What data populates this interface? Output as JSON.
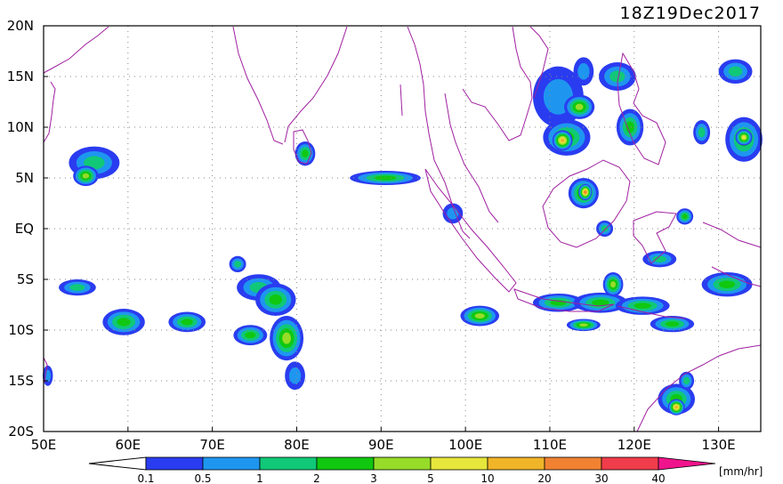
{
  "title": "18Z19Dec2017",
  "units_label": "[mm/hr]",
  "map": {
    "lon_range": [
      50,
      135
    ],
    "lat_range": [
      -20,
      20
    ],
    "lon_ticks": [
      {
        "value": 50,
        "label": "50E"
      },
      {
        "value": 60,
        "label": "60E"
      },
      {
        "value": 70,
        "label": "70E"
      },
      {
        "value": 80,
        "label": "80E"
      },
      {
        "value": 90,
        "label": "90E"
      },
      {
        "value": 100,
        "label": "100E"
      },
      {
        "value": 110,
        "label": "110E"
      },
      {
        "value": 120,
        "label": "120E"
      },
      {
        "value": 130,
        "label": "130E"
      }
    ],
    "lat_ticks": [
      {
        "value": 20,
        "label": "20N"
      },
      {
        "value": 15,
        "label": "15N"
      },
      {
        "value": 10,
        "label": "10N"
      },
      {
        "value": 5,
        "label": "5N"
      },
      {
        "value": 0,
        "label": "EQ"
      },
      {
        "value": -5,
        "label": "5S"
      },
      {
        "value": -10,
        "label": "10S"
      },
      {
        "value": -15,
        "label": "15S"
      },
      {
        "value": -20,
        "label": "20S"
      }
    ],
    "grid": "dotted",
    "coastline_color": "#a020a0"
  },
  "colorbar": {
    "levels": [
      "0.1",
      "0.5",
      "1",
      "2",
      "3",
      "5",
      "10",
      "20",
      "30",
      "40"
    ],
    "colors": [
      "#2a3cf0",
      "#1e96f0",
      "#10c878",
      "#10c810",
      "#96dc28",
      "#e6e63c",
      "#f0b428",
      "#f08232",
      "#f03c4b",
      "#f0148c"
    ],
    "under_color": "#ffffff"
  },
  "rain_cells": [
    {
      "lon": 56,
      "lat": 6.5,
      "rx": 3,
      "ry": 1.6,
      "level": 2
    },
    {
      "lon": 55,
      "lat": 5.2,
      "rx": 1.5,
      "ry": 1,
      "level": 4
    },
    {
      "lon": 59.5,
      "lat": -9.2,
      "rx": 2.5,
      "ry": 1.3,
      "level": 3
    },
    {
      "lon": 67,
      "lat": -9.2,
      "rx": 2.2,
      "ry": 1,
      "level": 3
    },
    {
      "lon": 54,
      "lat": -5.8,
      "rx": 2.2,
      "ry": 0.8,
      "level": 2
    },
    {
      "lon": 75.5,
      "lat": -5.8,
      "rx": 2.6,
      "ry": 1.3,
      "level": 2
    },
    {
      "lon": 77.5,
      "lat": -7,
      "rx": 2.4,
      "ry": 1.6,
      "level": 3
    },
    {
      "lon": 78.8,
      "lat": -10.8,
      "rx": 2,
      "ry": 2.2,
      "level": 4
    },
    {
      "lon": 74.5,
      "lat": -10.5,
      "rx": 2,
      "ry": 1,
      "level": 3
    },
    {
      "lon": 73,
      "lat": -3.5,
      "rx": 1,
      "ry": 0.8,
      "level": 2
    },
    {
      "lon": 79.8,
      "lat": -14.5,
      "rx": 1.2,
      "ry": 1.4,
      "level": 1
    },
    {
      "lon": 50.5,
      "lat": -14.5,
      "rx": 0.6,
      "ry": 1,
      "level": 1
    },
    {
      "lon": 81,
      "lat": 7.4,
      "rx": 1.2,
      "ry": 1.2,
      "level": 3
    },
    {
      "lon": 90.5,
      "lat": 5,
      "rx": 4.2,
      "ry": 0.7,
      "level": 3
    },
    {
      "lon": 98.5,
      "lat": 1.5,
      "rx": 1.2,
      "ry": 1,
      "level": 1
    },
    {
      "lon": 101.7,
      "lat": -8.6,
      "rx": 2.3,
      "ry": 1,
      "level": 4
    },
    {
      "lon": 111,
      "lat": 13,
      "rx": 3,
      "ry": 3,
      "level": 1
    },
    {
      "lon": 112,
      "lat": 9,
      "rx": 2.8,
      "ry": 1.8,
      "level": 3
    },
    {
      "lon": 113.5,
      "lat": 12,
      "rx": 1.8,
      "ry": 1.2,
      "level": 4
    },
    {
      "lon": 111.5,
      "lat": 8.7,
      "rx": 1.2,
      "ry": 1,
      "level": 6
    },
    {
      "lon": 114,
      "lat": 15.5,
      "rx": 1.2,
      "ry": 1.4,
      "level": 1
    },
    {
      "lon": 114,
      "lat": 3.5,
      "rx": 1.8,
      "ry": 1.5,
      "level": 4
    },
    {
      "lon": 114.2,
      "lat": 3.6,
      "rx": 0.8,
      "ry": 0.8,
      "level": 7
    },
    {
      "lon": 118,
      "lat": 15,
      "rx": 2.2,
      "ry": 1.4,
      "level": 2
    },
    {
      "lon": 119.5,
      "lat": 10,
      "rx": 1.6,
      "ry": 1.8,
      "level": 3
    },
    {
      "lon": 132,
      "lat": 15.5,
      "rx": 2,
      "ry": 1.2,
      "level": 2
    },
    {
      "lon": 133,
      "lat": 8.8,
      "rx": 2.2,
      "ry": 2.2,
      "level": 3
    },
    {
      "lon": 133,
      "lat": 9,
      "rx": 1,
      "ry": 0.8,
      "level": 5
    },
    {
      "lon": 128,
      "lat": 9.5,
      "rx": 1,
      "ry": 1.2,
      "level": 2
    },
    {
      "lon": 111,
      "lat": -7.3,
      "rx": 3,
      "ry": 0.9,
      "level": 3
    },
    {
      "lon": 116,
      "lat": -7.3,
      "rx": 3.2,
      "ry": 1,
      "level": 3
    },
    {
      "lon": 121,
      "lat": -7.6,
      "rx": 3.2,
      "ry": 0.9,
      "level": 3
    },
    {
      "lon": 124.5,
      "lat": -9.4,
      "rx": 2.6,
      "ry": 0.8,
      "level": 3
    },
    {
      "lon": 114,
      "lat": -9.5,
      "rx": 2,
      "ry": 0.6,
      "level": 4
    },
    {
      "lon": 123,
      "lat": -3,
      "rx": 2,
      "ry": 0.8,
      "level": 2
    },
    {
      "lon": 131,
      "lat": -5.5,
      "rx": 3,
      "ry": 1.2,
      "level": 3
    },
    {
      "lon": 117.5,
      "lat": -5.5,
      "rx": 1.2,
      "ry": 1.2,
      "level": 4
    },
    {
      "lon": 125,
      "lat": -16.8,
      "rx": 2.2,
      "ry": 1.5,
      "level": 3
    },
    {
      "lon": 125,
      "lat": -17.6,
      "rx": 1,
      "ry": 0.8,
      "level": 6
    },
    {
      "lon": 126.2,
      "lat": -15,
      "rx": 0.9,
      "ry": 0.9,
      "level": 2
    },
    {
      "lon": 116.5,
      "lat": 0,
      "rx": 1,
      "ry": 0.8,
      "level": 2
    },
    {
      "lon": 126,
      "lat": 1.2,
      "rx": 1,
      "ry": 0.8,
      "level": 3
    }
  ]
}
